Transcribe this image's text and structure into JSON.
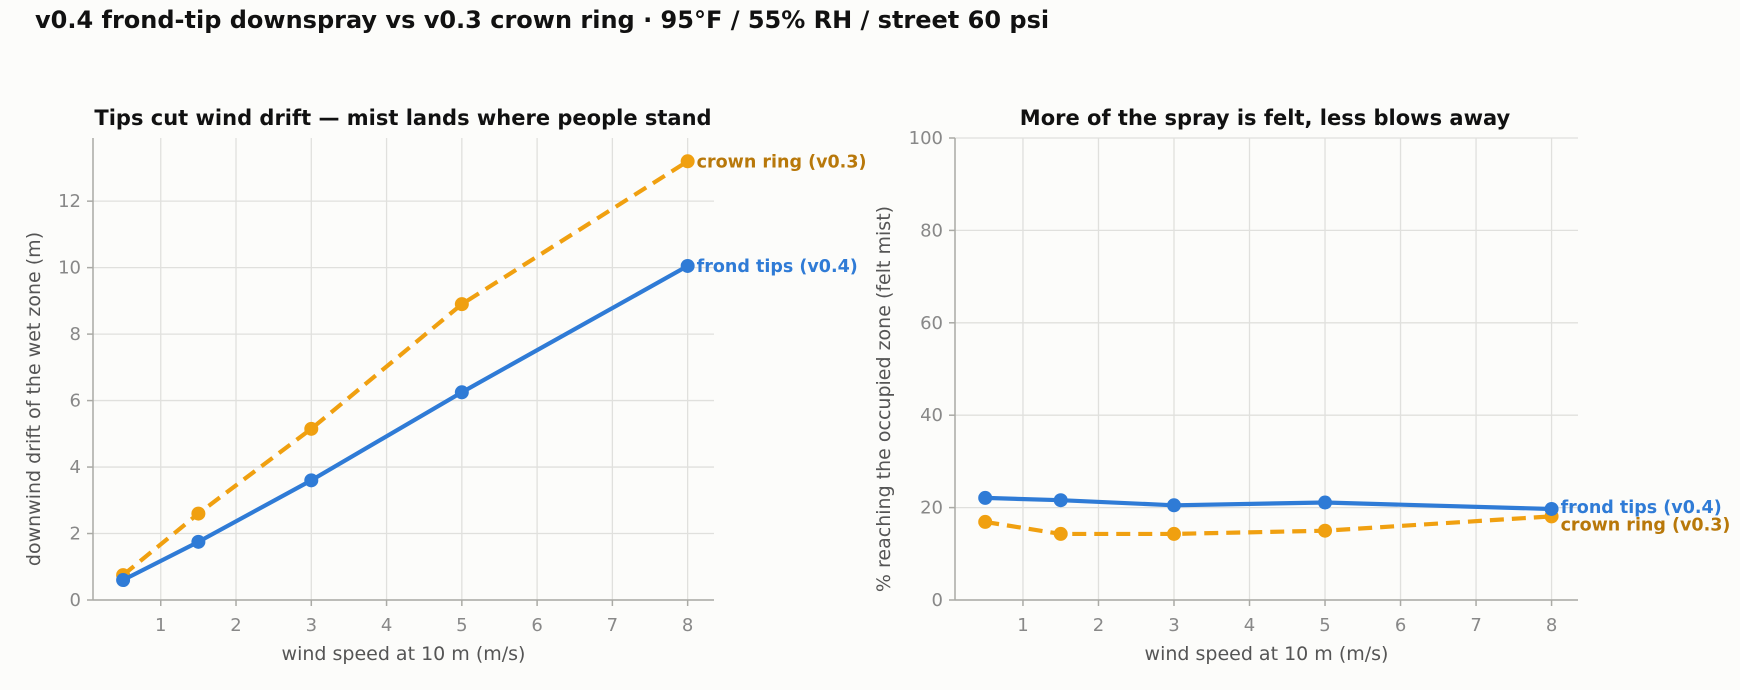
{
  "title": "v0.4 frond-tip downspray vs v0.3 crown ring  ·  95°F / 55% RH / street 60 psi",
  "colors": {
    "tips": "#2f7bd6",
    "ring": "#f0a010",
    "ring_label": "#b8780a"
  },
  "chart_data": [
    {
      "type": "line",
      "title": "Tips cut wind drift — mist lands where people stand",
      "xlabel": "wind speed at 10 m (m/s)",
      "ylabel": "downwind drift of the wet zone (m)",
      "xlim": [
        0.1,
        8.35
      ],
      "ylim": [
        0,
        13.9
      ],
      "xticks": [
        1,
        2,
        3,
        4,
        5,
        6,
        7,
        8
      ],
      "yticks": [
        0,
        2,
        4,
        6,
        8,
        10,
        12
      ],
      "grid": true,
      "x": [
        0.5,
        1.5,
        3,
        5,
        8
      ],
      "series": [
        {
          "name": "frond tips (v0.4)",
          "key": "tips",
          "style": "solid",
          "values": [
            0.6,
            1.75,
            3.6,
            6.25,
            10.05
          ]
        },
        {
          "name": "crown ring (v0.3)",
          "key": "ring",
          "style": "dashed",
          "values": [
            0.75,
            2.6,
            5.15,
            8.9,
            13.2
          ]
        }
      ]
    },
    {
      "type": "line",
      "title": "More of the spray is felt, less blows away",
      "xlabel": "wind speed at 10 m (m/s)",
      "ylabel": "% reaching the occupied zone (felt mist)",
      "xlim": [
        0.1,
        8.35
      ],
      "ylim": [
        0,
        100
      ],
      "xticks": [
        1,
        2,
        3,
        4,
        5,
        6,
        7,
        8
      ],
      "yticks": [
        0,
        20,
        40,
        60,
        80,
        100
      ],
      "grid": true,
      "x": [
        0.5,
        1.5,
        3,
        5,
        8
      ],
      "series": [
        {
          "name": "frond tips (v0.4)",
          "key": "tips",
          "style": "solid",
          "values": [
            22.1,
            21.6,
            20.5,
            21.1,
            19.7
          ]
        },
        {
          "name": "crown ring (v0.3)",
          "key": "ring",
          "style": "dashed",
          "values": [
            16.9,
            14.3,
            14.3,
            15.0,
            18.1
          ]
        }
      ]
    }
  ]
}
